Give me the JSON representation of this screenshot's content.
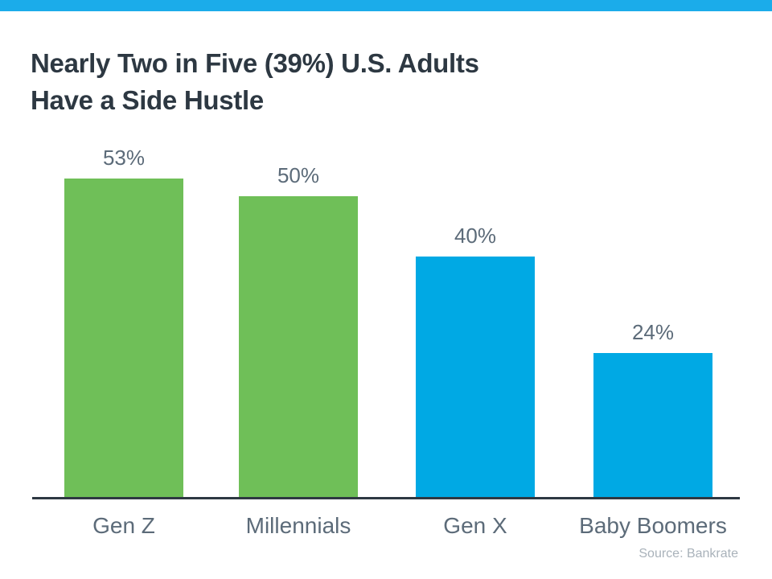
{
  "page": {
    "background": "#ffffff"
  },
  "top_bar": {
    "color": "#1BACEA"
  },
  "title": {
    "line1": "Nearly Two in Five (39%) U.S. Adults",
    "line2": "Have a Side Hustle",
    "color": "#2D3842"
  },
  "source": {
    "label": "Source: Bankrate",
    "color": "#A9B2BA"
  },
  "chart_data": {
    "type": "bar",
    "title": "Nearly Two in Five (39%) U.S. Adults Have a Side Hustle",
    "categories": [
      "Gen Z",
      "Millennials",
      "Gen X",
      "Baby Boomers"
    ],
    "values": [
      53,
      50,
      40,
      24
    ],
    "value_labels": [
      "53%",
      "50%",
      "40%",
      "24%"
    ],
    "bar_colors": [
      "#6FBF58",
      "#6FBF58",
      "#00A9E4",
      "#00A9E4"
    ],
    "xlabel": "",
    "ylabel": "",
    "ylim": [
      0,
      56
    ],
    "grid": false,
    "legend": false,
    "value_label_color": "#5C6B79",
    "category_label_color": "#5C6B79",
    "axis_color": "#2E3842",
    "annotations": [
      "Source: Bankrate"
    ]
  }
}
